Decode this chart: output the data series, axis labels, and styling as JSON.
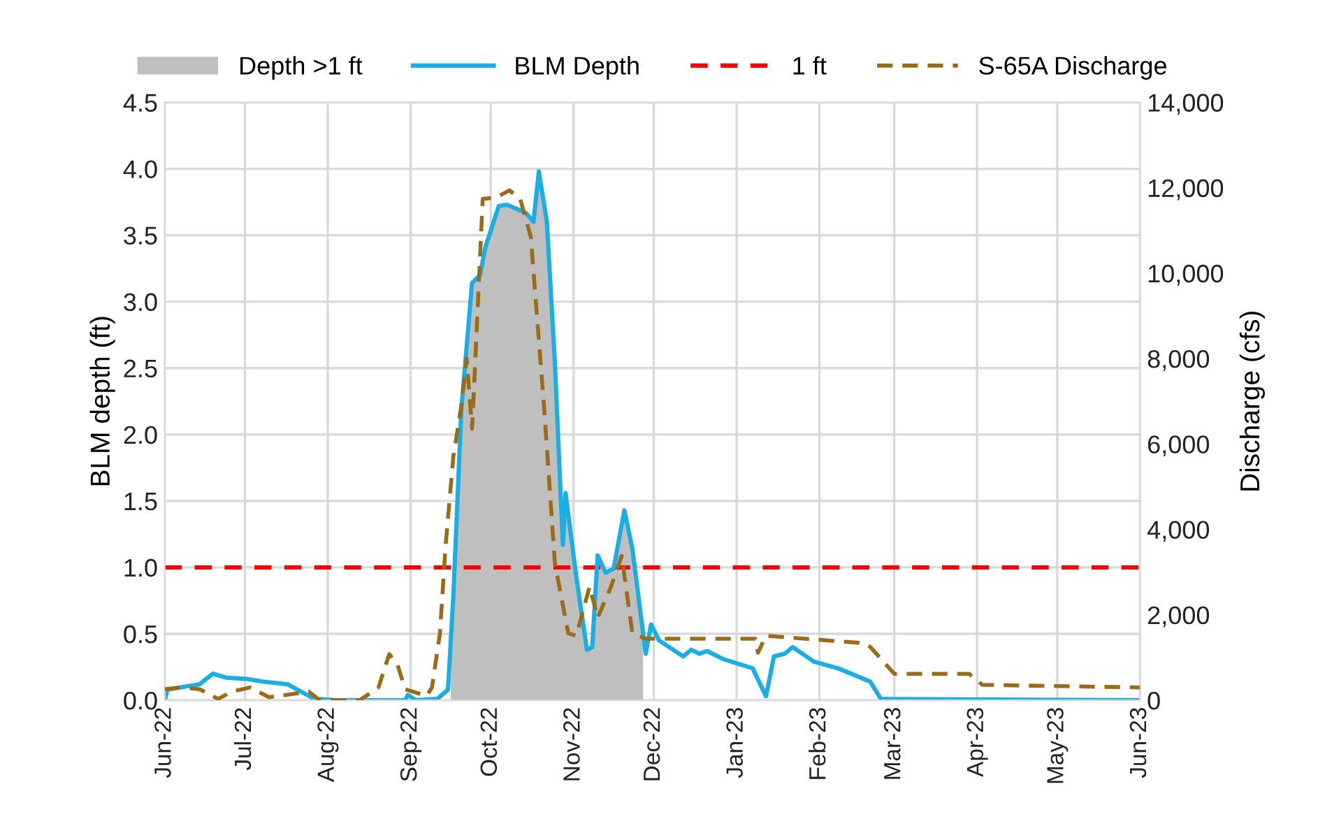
{
  "chart_data": {
    "type": "line",
    "ylabel": "BLM depth (ft)",
    "y2label": "Discharge (cfs)",
    "xlim": [
      "2022-06-01",
      "2023-06-01"
    ],
    "xticks": [
      {
        "value": "2022-06-01",
        "label": "Jun-22"
      },
      {
        "value": "2022-07-01",
        "label": "Jul-22"
      },
      {
        "value": "2022-08-01",
        "label": "Aug-22"
      },
      {
        "value": "2022-09-01",
        "label": "Sep-22"
      },
      {
        "value": "2022-10-01",
        "label": "Oct-22"
      },
      {
        "value": "2022-11-01",
        "label": "Nov-22"
      },
      {
        "value": "2022-12-01",
        "label": "Dec-22"
      },
      {
        "value": "2023-01-01",
        "label": "Jan-23"
      },
      {
        "value": "2023-02-01",
        "label": "Feb-23"
      },
      {
        "value": "2023-03-01",
        "label": "Mar-23"
      },
      {
        "value": "2023-04-01",
        "label": "Apr-23"
      },
      {
        "value": "2023-05-01",
        "label": "May-23"
      },
      {
        "value": "2023-06-01",
        "label": "Jun-23"
      }
    ],
    "ylim": [
      0,
      4.5
    ],
    "yticks": [
      {
        "value": 0,
        "label": "0.0"
      },
      {
        "value": 0.5,
        "label": "0.5"
      },
      {
        "value": 1,
        "label": "1.0"
      },
      {
        "value": 1.5,
        "label": "1.5"
      },
      {
        "value": 2,
        "label": "2.0"
      },
      {
        "value": 2.5,
        "label": "2.5"
      },
      {
        "value": 3,
        "label": "3.0"
      },
      {
        "value": 3.5,
        "label": "3.5"
      },
      {
        "value": 4,
        "label": "4.0"
      },
      {
        "value": 4.5,
        "label": "4.5"
      }
    ],
    "y2lim": [
      0,
      14000
    ],
    "y2ticks": [
      {
        "value": 0,
        "label": "0"
      },
      {
        "value": 2000,
        "label": "2,000"
      },
      {
        "value": 4000,
        "label": "4,000"
      },
      {
        "value": 6000,
        "label": "6,000"
      },
      {
        "value": 8000,
        "label": "8,000"
      },
      {
        "value": 10000,
        "label": "10,000"
      },
      {
        "value": 12000,
        "label": "12,000"
      },
      {
        "value": 14000,
        "label": "14,000"
      }
    ],
    "grid": true,
    "legend": "top",
    "line_style": "solid",
    "marker": "none",
    "ref_lines": [
      {
        "axis": "y",
        "value": 1,
        "label": "1 ft",
        "color": "#ff0000",
        "line_style": "dashed"
      }
    ],
    "series": [
      {
        "name": "Depth >1 ft",
        "type": "area",
        "color": "#bfbfbf",
        "x": [
          "2022-09-16",
          "2022-09-17",
          "2022-09-20",
          "2022-09-24",
          "2022-09-27",
          "2022-09-29",
          "2022-10-04",
          "2022-10-07",
          "2022-10-14",
          "2022-10-17",
          "2022-10-19",
          "2022-10-22",
          "2022-10-25",
          "2022-10-28",
          "2022-10-29",
          "2022-11-02",
          "2022-11-06",
          "2022-11-08",
          "2022-11-10",
          "2022-11-13",
          "2022-11-16",
          "2022-11-20",
          "2022-11-23",
          "2022-11-27"
        ],
        "values": [
          0.1,
          0.78,
          2.19,
          3.14,
          3.2,
          3.41,
          3.72,
          3.73,
          3.67,
          3.6,
          3.98,
          3.6,
          2.54,
          1.17,
          1.56,
          0.93,
          0.38,
          0.4,
          1.09,
          0.96,
          0.99,
          1.43,
          1.14,
          0.45
        ]
      },
      {
        "name": "BLM Depth",
        "color": "#1aaee5",
        "x": [
          "2022-06-01",
          "2022-06-02",
          "2022-06-14",
          "2022-06-19",
          "2022-06-24",
          "2022-07-02",
          "2022-07-08",
          "2022-07-17",
          "2022-07-27",
          "2022-08-05",
          "2022-08-30",
          "2022-08-31",
          "2022-09-03",
          "2022-09-11",
          "2022-09-15",
          "2022-09-17",
          "2022-09-20",
          "2022-09-24",
          "2022-09-27",
          "2022-09-29",
          "2022-10-04",
          "2022-10-07",
          "2022-10-14",
          "2022-10-17",
          "2022-10-19",
          "2022-10-22",
          "2022-10-25",
          "2022-10-28",
          "2022-10-29",
          "2022-11-02",
          "2022-11-06",
          "2022-11-08",
          "2022-11-10",
          "2022-11-13",
          "2022-11-16",
          "2022-11-20",
          "2022-11-23",
          "2022-11-28",
          "2022-11-30",
          "2022-12-03",
          "2022-12-12",
          "2022-12-15",
          "2022-12-18",
          "2022-12-21",
          "2022-12-27",
          "2023-01-07",
          "2023-01-12",
          "2023-01-15",
          "2023-01-19",
          "2023-01-22",
          "2023-01-30",
          "2023-02-08",
          "2023-02-20",
          "2023-02-24",
          "2023-06-01"
        ],
        "values": [
          0,
          0.08,
          0.12,
          0.2,
          0.17,
          0.16,
          0.14,
          0.12,
          0.01,
          0,
          0,
          0.04,
          0,
          0.01,
          0.08,
          0.78,
          2.19,
          3.14,
          3.2,
          3.41,
          3.72,
          3.73,
          3.67,
          3.6,
          3.98,
          3.6,
          2.54,
          1.17,
          1.56,
          0.93,
          0.38,
          0.4,
          1.09,
          0.96,
          0.99,
          1.43,
          1.14,
          0.35,
          0.57,
          0.45,
          0.33,
          0.38,
          0.35,
          0.37,
          0.31,
          0.24,
          0.03,
          0.33,
          0.35,
          0.4,
          0.29,
          0.24,
          0.14,
          0.01,
          0
        ]
      },
      {
        "name": "S-65A Discharge",
        "type": "line",
        "axis": "y2",
        "color": "#9c6b17",
        "line_style": "dashed",
        "x": [
          "2022-06-01",
          "2022-06-07",
          "2022-06-14",
          "2022-06-21",
          "2022-06-26",
          "2022-07-03",
          "2022-07-10",
          "2022-07-25",
          "2022-07-29",
          "2022-08-13",
          "2022-08-20",
          "2022-08-24",
          "2022-08-27",
          "2022-08-30",
          "2022-09-07",
          "2022-09-09",
          "2022-09-12",
          "2022-09-14",
          "2022-09-17",
          "2022-09-20",
          "2022-09-22",
          "2022-09-24",
          "2022-09-25",
          "2022-09-28",
          "2022-10-03",
          "2022-10-08",
          "2022-10-12",
          "2022-10-16",
          "2022-10-21",
          "2022-10-25",
          "2022-10-30",
          "2022-11-02",
          "2022-11-07",
          "2022-11-10",
          "2022-11-15",
          "2022-11-19",
          "2022-11-23",
          "2022-11-28",
          "2023-01-08",
          "2023-01-09",
          "2023-01-12",
          "2023-02-17",
          "2023-02-20",
          "2023-03-01",
          "2023-03-29",
          "2023-04-03",
          "2023-06-01"
        ],
        "values": [
          260,
          300,
          260,
          30,
          200,
          300,
          70,
          200,
          0,
          0,
          300,
          1080,
          850,
          260,
          100,
          300,
          1570,
          3540,
          5700,
          6900,
          8000,
          6360,
          7670,
          11740,
          11770,
          11940,
          11740,
          10850,
          6820,
          3210,
          1570,
          1510,
          2660,
          1930,
          2660,
          3380,
          1570,
          1440,
          1440,
          1110,
          1510,
          1340,
          1250,
          620,
          620,
          360,
          300
        ]
      }
    ]
  }
}
